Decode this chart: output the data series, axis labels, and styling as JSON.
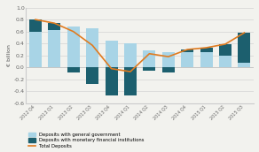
{
  "categories": [
    "2012 Q4",
    "2013 Q1",
    "2013 Q2",
    "2013 Q3",
    "2013 Q4",
    "2014 Q1",
    "2014 Q2",
    "2014 Q3",
    "2014 Q4",
    "2015 Q1",
    "2015 Q2",
    "2015 Q3"
  ],
  "gov_deposits": [
    0.6,
    0.62,
    0.68,
    0.65,
    0.45,
    0.4,
    0.28,
    0.26,
    0.25,
    0.25,
    0.2,
    0.08
  ],
  "mfi_deposits": [
    0.2,
    0.12,
    -0.08,
    -0.28,
    -0.47,
    -0.47,
    -0.05,
    -0.08,
    0.05,
    0.08,
    0.19,
    0.5
  ],
  "total_deposits": [
    0.8,
    0.74,
    0.6,
    0.37,
    -0.02,
    -0.07,
    0.23,
    0.18,
    0.3,
    0.33,
    0.39,
    0.58
  ],
  "color_gov": "#a8d4e6",
  "color_mfi": "#1c5f6e",
  "color_total": "#e07b20",
  "ylabel": "€ billion",
  "ylim": [
    -0.6,
    1.0
  ],
  "yticks": [
    -0.6,
    -0.4,
    -0.2,
    0.0,
    0.2,
    0.4,
    0.6,
    0.8,
    1.0
  ],
  "legend_gov": "Deposits with general government",
  "legend_mfi": "Deposits with monetary financial institutions",
  "legend_total": "Total Deposits",
  "bg_color": "#f2f2ee"
}
